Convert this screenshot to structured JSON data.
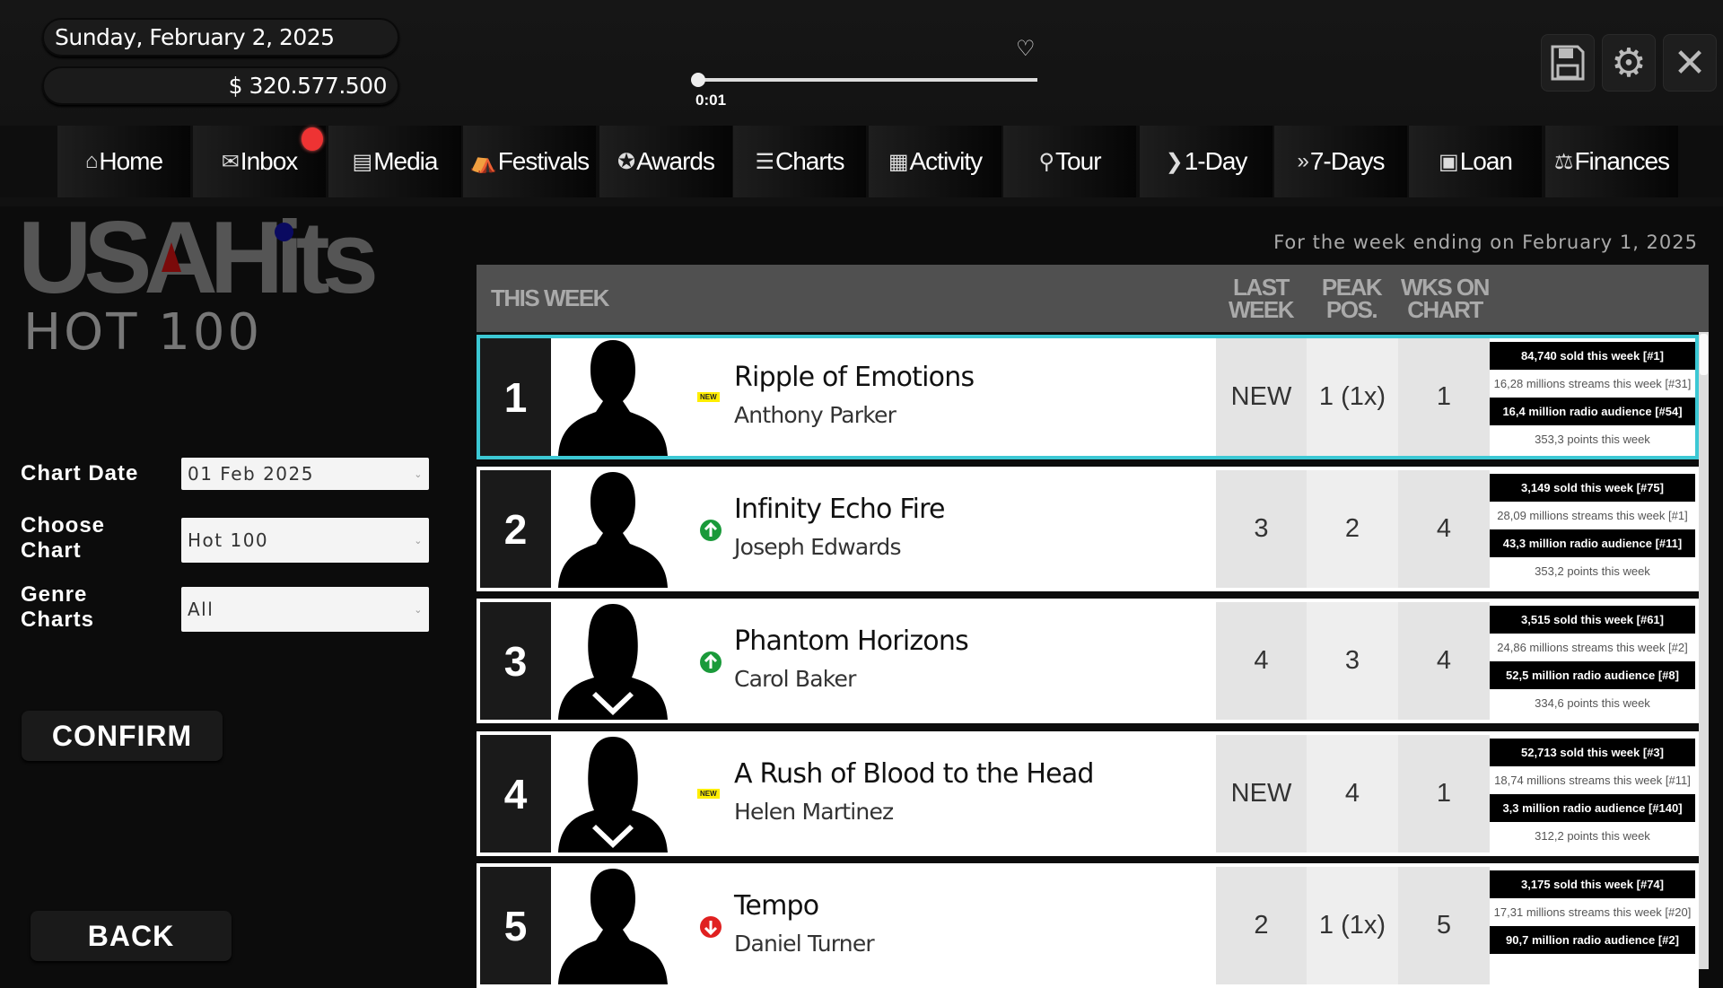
{
  "header": {
    "date": "Sunday, February 2, 2025",
    "money": "$ 320.577.500",
    "time": "0:01",
    "playback_progress": 0.02
  },
  "toolbar": {
    "save_icon": "floppy-disk-icon",
    "settings_icon": "gear-icon",
    "close_icon": "close-icon"
  },
  "nav": [
    {
      "label": "Home",
      "icon": "⌂"
    },
    {
      "label": "Inbox",
      "icon": "✉",
      "badge": true
    },
    {
      "label": "Media",
      "icon": "▤"
    },
    {
      "label": "Festivals",
      "icon": "⛺"
    },
    {
      "label": "Awards",
      "icon": "✪"
    },
    {
      "label": "Charts",
      "icon": "☰"
    },
    {
      "label": "Activity",
      "icon": "▦"
    },
    {
      "label": "Tour",
      "icon": "⚲"
    },
    {
      "label": "1-Day",
      "icon": "❯"
    },
    {
      "label": "7-Days",
      "icon": "»"
    },
    {
      "label": "Loan",
      "icon": "▣"
    },
    {
      "label": "Finances",
      "icon": "⚖"
    }
  ],
  "logo": {
    "main": "USAHits",
    "sub": "HOT 100"
  },
  "filters": {
    "chart_date_label": "Chart Date",
    "chart_date": "01 Feb 2025",
    "choose_chart_label": "Choose Chart",
    "chart": "Hot 100",
    "genre_label": "Genre Charts",
    "genre": "All"
  },
  "buttons": {
    "confirm": "CONFIRM",
    "back": "BACK"
  },
  "week_ending": "For the week ending on February 1, 2025",
  "columns": {
    "this_week": "THIS WEEK",
    "last_week": "LAST WEEK",
    "peak": "PEAK POS.",
    "weeks": "WKS ON CHART"
  },
  "colors": {
    "highlight": "#3cc8d4",
    "up": "#1a9a3a",
    "down": "#e02020",
    "new": "#ffee00"
  },
  "rows": [
    {
      "rank": "1",
      "title": "Ripple of Emotions",
      "artist": "Anthony Parker",
      "move": "new",
      "new_label": "NEW",
      "avatar": "male",
      "last": "NEW",
      "peak": "1 (1x)",
      "weeks": "1",
      "sold": "84,740 sold this week [#1]",
      "streams": "16,28 millions streams this week [#31]",
      "radio": "16,4 million radio audience [#54]",
      "points": "353,3 points this week"
    },
    {
      "rank": "2",
      "title": "Infinity Echo Fire",
      "artist": "Joseph Edwards",
      "move": "up",
      "avatar": "male",
      "last": "3",
      "peak": "2",
      "weeks": "4",
      "sold": "3,149 sold this week [#75]",
      "streams": "28,09 millions streams this week [#1]",
      "radio": "43,3 million radio audience [#11]",
      "points": "353,2 points this week"
    },
    {
      "rank": "3",
      "title": "Phantom Horizons",
      "artist": "Carol Baker",
      "move": "up",
      "avatar": "female",
      "last": "4",
      "peak": "3",
      "weeks": "4",
      "sold": "3,515 sold this week [#61]",
      "streams": "24,86 millions streams this week [#2]",
      "radio": "52,5 million radio audience [#8]",
      "points": "334,6 points this week"
    },
    {
      "rank": "4",
      "title": "A Rush of Blood to the Head",
      "artist": "Helen Martinez",
      "move": "new",
      "new_label": "NEW",
      "avatar": "female",
      "last": "NEW",
      "peak": "4",
      "weeks": "1",
      "sold": "52,713 sold this week [#3]",
      "streams": "18,74 millions streams this week [#11]",
      "radio": "3,3 million radio audience [#140]",
      "points": "312,2 points this week"
    },
    {
      "rank": "5",
      "title": "Tempo",
      "artist": "Daniel Turner",
      "move": "down",
      "avatar": "male",
      "last": "2",
      "peak": "1 (1x)",
      "weeks": "5",
      "sold": "3,175 sold this week [#74]",
      "streams": "17,31 millions streams this week [#20]",
      "radio": "90,7 million radio audience [#2]"
    }
  ]
}
